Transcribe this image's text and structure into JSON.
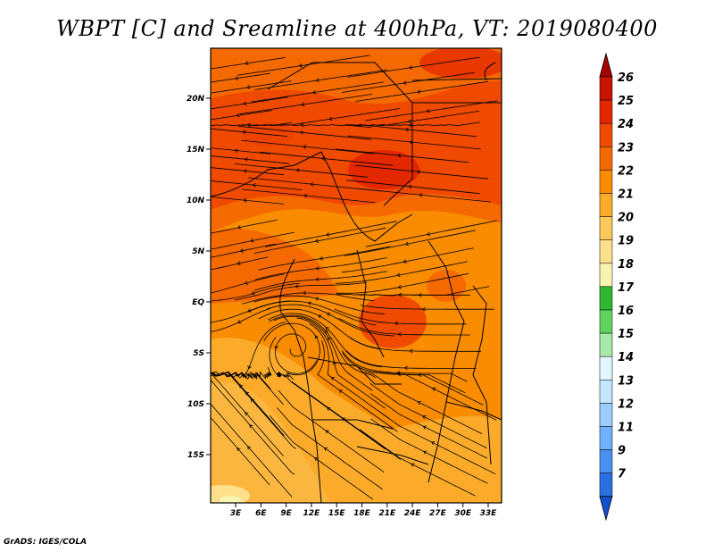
{
  "title": "WBPT [C] and Sreamline at 400hPa, VT: 2019080400",
  "footer": "GrADS: IGES/COLA",
  "lat_ticks": [
    "20N",
    "15N",
    "10N",
    "5N",
    "EQ",
    "5S",
    "10S",
    "15S"
  ],
  "lon_ticks": [
    "3E",
    "6E",
    "9E",
    "12E",
    "15E",
    "18E",
    "21E",
    "24E",
    "27E",
    "30E",
    "33E"
  ],
  "colorbar": {
    "levels": [
      "26",
      "25",
      "24",
      "23",
      "22",
      "21",
      "20",
      "19",
      "18",
      "17",
      "16",
      "15",
      "14",
      "13",
      "12",
      "11",
      "9",
      "7"
    ],
    "colors": [
      "#a50000",
      "#c81400",
      "#e32800",
      "#f04a00",
      "#f56a00",
      "#f98c00",
      "#fbaa2a",
      "#fcc85c",
      "#fde08c",
      "#f7f3b0",
      "#30b830",
      "#5fd35f",
      "#a8e8a8",
      "#e2f6ff",
      "#c5e6ff",
      "#9ccdff",
      "#6db1ff",
      "#4a90f0",
      "#2a6fe0",
      "#1550d0"
    ]
  },
  "map": {
    "lon_range": [
      0,
      35
    ],
    "lat_range": [
      -20,
      25
    ],
    "field": "Wet-bulb potential temperature",
    "units": "C",
    "level": "400hPa",
    "valid_time": "2019080400"
  }
}
